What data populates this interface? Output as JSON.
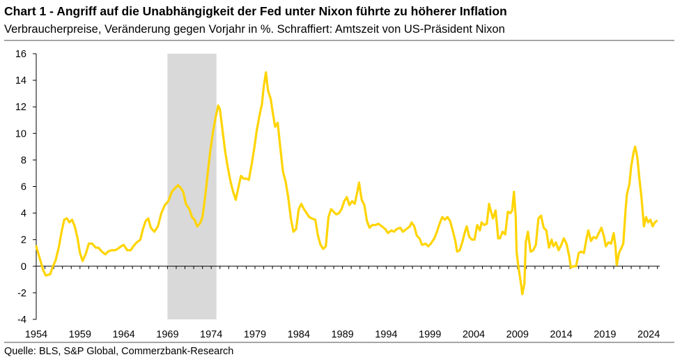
{
  "header": {
    "title": "Chart 1 - Angriff auf die Unabhängigkeit der Fed unter Nixon führte zu höherer Inflation",
    "subtitle": "Verbraucherpreise, Veränderung gegen Vorjahr in %. Schraffiert: Amtszeit von US-Präsident Nixon"
  },
  "footer": {
    "source": "Quelle: BLS, S&P Global, Commerzbank-Research"
  },
  "chart_data": {
    "type": "line",
    "xlim": [
      1954,
      2025.5
    ],
    "ylim": [
      -4,
      16
    ],
    "y_ticks": [
      "16",
      "14",
      "12",
      "10",
      "8",
      "6",
      "4",
      "2",
      "0",
      "-2",
      "-4"
    ],
    "x_ticks": [
      "1954",
      "1959",
      "1964",
      "1969",
      "1974",
      "1979",
      "1984",
      "1989",
      "1994",
      "1999",
      "2004",
      "2009",
      "2014",
      "2019",
      "2024"
    ],
    "shaded_period": {
      "start": 1969.0,
      "end": 1974.6,
      "color": "#d9d9d9"
    },
    "series": [
      {
        "color": "#ffd400",
        "points": [
          [
            1954.0,
            1.5
          ],
          [
            1954.4,
            0.6
          ],
          [
            1954.8,
            -0.3
          ],
          [
            1955.1,
            -0.7
          ],
          [
            1955.6,
            -0.6
          ],
          [
            1955.9,
            0.0
          ],
          [
            1956.2,
            0.4
          ],
          [
            1956.6,
            1.5
          ],
          [
            1956.9,
            2.6
          ],
          [
            1957.2,
            3.5
          ],
          [
            1957.5,
            3.6
          ],
          [
            1957.8,
            3.3
          ],
          [
            1958.1,
            3.5
          ],
          [
            1958.4,
            3.0
          ],
          [
            1958.7,
            2.2
          ],
          [
            1959.0,
            1.0
          ],
          [
            1959.3,
            0.4
          ],
          [
            1959.7,
            1.0
          ],
          [
            1960.0,
            1.7
          ],
          [
            1960.4,
            1.7
          ],
          [
            1960.8,
            1.4
          ],
          [
            1961.1,
            1.4
          ],
          [
            1961.5,
            1.1
          ],
          [
            1961.9,
            0.9
          ],
          [
            1962.2,
            1.1
          ],
          [
            1962.6,
            1.2
          ],
          [
            1963.0,
            1.2
          ],
          [
            1963.3,
            1.3
          ],
          [
            1963.7,
            1.5
          ],
          [
            1964.0,
            1.6
          ],
          [
            1964.4,
            1.2
          ],
          [
            1964.8,
            1.2
          ],
          [
            1965.1,
            1.5
          ],
          [
            1965.5,
            1.8
          ],
          [
            1965.9,
            2.0
          ],
          [
            1966.2,
            2.8
          ],
          [
            1966.5,
            3.4
          ],
          [
            1966.8,
            3.6
          ],
          [
            1967.1,
            2.9
          ],
          [
            1967.5,
            2.6
          ],
          [
            1967.9,
            3.0
          ],
          [
            1968.3,
            4.0
          ],
          [
            1968.7,
            4.6
          ],
          [
            1969.1,
            4.9
          ],
          [
            1969.5,
            5.6
          ],
          [
            1969.9,
            5.9
          ],
          [
            1970.2,
            6.1
          ],
          [
            1970.5,
            5.9
          ],
          [
            1970.8,
            5.6
          ],
          [
            1971.1,
            4.7
          ],
          [
            1971.5,
            4.3
          ],
          [
            1971.8,
            3.7
          ],
          [
            1972.1,
            3.5
          ],
          [
            1972.4,
            3.0
          ],
          [
            1972.7,
            3.2
          ],
          [
            1973.0,
            3.7
          ],
          [
            1973.3,
            5.2
          ],
          [
            1973.6,
            7.0
          ],
          [
            1973.9,
            8.7
          ],
          [
            1974.2,
            10.1
          ],
          [
            1974.5,
            11.2
          ],
          [
            1974.8,
            12.1
          ],
          [
            1975.0,
            11.8
          ],
          [
            1975.3,
            10.2
          ],
          [
            1975.6,
            8.6
          ],
          [
            1975.9,
            7.4
          ],
          [
            1976.2,
            6.4
          ],
          [
            1976.5,
            5.6
          ],
          [
            1976.8,
            5.0
          ],
          [
            1977.1,
            5.9
          ],
          [
            1977.4,
            6.8
          ],
          [
            1977.7,
            6.6
          ],
          [
            1978.0,
            6.6
          ],
          [
            1978.3,
            6.5
          ],
          [
            1978.6,
            7.6
          ],
          [
            1978.9,
            8.8
          ],
          [
            1979.2,
            10.2
          ],
          [
            1979.5,
            11.3
          ],
          [
            1979.8,
            12.2
          ],
          [
            1980.0,
            13.5
          ],
          [
            1980.25,
            14.6
          ],
          [
            1980.5,
            13.2
          ],
          [
            1980.8,
            12.6
          ],
          [
            1981.0,
            11.7
          ],
          [
            1981.3,
            10.5
          ],
          [
            1981.6,
            10.8
          ],
          [
            1981.9,
            8.9
          ],
          [
            1982.2,
            7.1
          ],
          [
            1982.5,
            6.4
          ],
          [
            1982.8,
            5.2
          ],
          [
            1983.1,
            3.6
          ],
          [
            1983.4,
            2.6
          ],
          [
            1983.7,
            2.8
          ],
          [
            1984.0,
            4.3
          ],
          [
            1984.3,
            4.7
          ],
          [
            1984.6,
            4.3
          ],
          [
            1984.9,
            4.0
          ],
          [
            1985.2,
            3.7
          ],
          [
            1985.5,
            3.6
          ],
          [
            1985.9,
            3.5
          ],
          [
            1986.2,
            2.3
          ],
          [
            1986.5,
            1.6
          ],
          [
            1986.8,
            1.3
          ],
          [
            1987.1,
            1.5
          ],
          [
            1987.4,
            3.7
          ],
          [
            1987.7,
            4.3
          ],
          [
            1988.0,
            4.1
          ],
          [
            1988.3,
            3.9
          ],
          [
            1988.6,
            4.0
          ],
          [
            1988.9,
            4.3
          ],
          [
            1989.2,
            4.9
          ],
          [
            1989.5,
            5.2
          ],
          [
            1989.8,
            4.6
          ],
          [
            1990.1,
            4.9
          ],
          [
            1990.4,
            4.7
          ],
          [
            1990.7,
            5.6
          ],
          [
            1990.9,
            6.3
          ],
          [
            1991.2,
            5.0
          ],
          [
            1991.5,
            4.6
          ],
          [
            1991.8,
            3.4
          ],
          [
            1992.1,
            2.9
          ],
          [
            1992.4,
            3.1
          ],
          [
            1992.8,
            3.1
          ],
          [
            1993.1,
            3.2
          ],
          [
            1993.5,
            3.0
          ],
          [
            1993.9,
            2.8
          ],
          [
            1994.2,
            2.5
          ],
          [
            1994.6,
            2.7
          ],
          [
            1994.9,
            2.6
          ],
          [
            1995.2,
            2.8
          ],
          [
            1995.6,
            2.9
          ],
          [
            1995.9,
            2.6
          ],
          [
            1996.3,
            2.8
          ],
          [
            1996.7,
            3.0
          ],
          [
            1996.9,
            3.3
          ],
          [
            1997.2,
            3.0
          ],
          [
            1997.5,
            2.3
          ],
          [
            1997.8,
            2.1
          ],
          [
            1998.1,
            1.6
          ],
          [
            1998.5,
            1.7
          ],
          [
            1998.8,
            1.5
          ],
          [
            1999.1,
            1.7
          ],
          [
            1999.5,
            2.1
          ],
          [
            1999.8,
            2.6
          ],
          [
            2000.1,
            3.2
          ],
          [
            2000.4,
            3.7
          ],
          [
            2000.7,
            3.5
          ],
          [
            2001.0,
            3.7
          ],
          [
            2001.3,
            3.4
          ],
          [
            2001.6,
            2.7
          ],
          [
            2001.9,
            1.9
          ],
          [
            2002.1,
            1.1
          ],
          [
            2002.4,
            1.2
          ],
          [
            2002.7,
            1.8
          ],
          [
            2003.0,
            2.6
          ],
          [
            2003.2,
            3.0
          ],
          [
            2003.5,
            2.2
          ],
          [
            2003.8,
            2.0
          ],
          [
            2004.1,
            2.0
          ],
          [
            2004.4,
            3.1
          ],
          [
            2004.7,
            2.7
          ],
          [
            2004.9,
            3.3
          ],
          [
            2005.2,
            3.1
          ],
          [
            2005.5,
            3.2
          ],
          [
            2005.75,
            4.7
          ],
          [
            2005.9,
            4.3
          ],
          [
            2006.2,
            3.6
          ],
          [
            2006.5,
            4.2
          ],
          [
            2006.8,
            2.1
          ],
          [
            2007.0,
            2.1
          ],
          [
            2007.3,
            2.6
          ],
          [
            2007.6,
            2.4
          ],
          [
            2007.9,
            4.1
          ],
          [
            2008.2,
            4.0
          ],
          [
            2008.4,
            4.2
          ],
          [
            2008.6,
            5.6
          ],
          [
            2008.8,
            3.7
          ],
          [
            2008.9,
            1.1
          ],
          [
            2009.1,
            0.0
          ],
          [
            2009.4,
            -1.3
          ],
          [
            2009.55,
            -2.1
          ],
          [
            2009.8,
            -1.3
          ],
          [
            2009.95,
            1.8
          ],
          [
            2010.2,
            2.6
          ],
          [
            2010.5,
            1.1
          ],
          [
            2010.8,
            1.2
          ],
          [
            2011.1,
            1.6
          ],
          [
            2011.4,
            3.6
          ],
          [
            2011.7,
            3.8
          ],
          [
            2012.0,
            2.9
          ],
          [
            2012.3,
            2.7
          ],
          [
            2012.6,
            1.4
          ],
          [
            2012.9,
            2.0
          ],
          [
            2013.1,
            1.5
          ],
          [
            2013.4,
            1.8
          ],
          [
            2013.7,
            1.2
          ],
          [
            2014.0,
            1.6
          ],
          [
            2014.3,
            2.1
          ],
          [
            2014.6,
            1.7
          ],
          [
            2014.9,
            0.8
          ],
          [
            2015.1,
            -0.1
          ],
          [
            2015.4,
            0.0
          ],
          [
            2015.7,
            0.0
          ],
          [
            2016.0,
            1.0
          ],
          [
            2016.3,
            1.1
          ],
          [
            2016.6,
            1.0
          ],
          [
            2016.9,
            2.1
          ],
          [
            2017.1,
            2.7
          ],
          [
            2017.4,
            1.9
          ],
          [
            2017.7,
            2.2
          ],
          [
            2018.0,
            2.1
          ],
          [
            2018.3,
            2.5
          ],
          [
            2018.6,
            2.9
          ],
          [
            2018.9,
            2.2
          ],
          [
            2019.1,
            1.5
          ],
          [
            2019.4,
            1.8
          ],
          [
            2019.7,
            1.7
          ],
          [
            2020.0,
            2.5
          ],
          [
            2020.2,
            1.5
          ],
          [
            2020.35,
            0.1
          ],
          [
            2020.6,
            1.0
          ],
          [
            2020.9,
            1.4
          ],
          [
            2021.1,
            1.7
          ],
          [
            2021.35,
            4.2
          ],
          [
            2021.5,
            5.4
          ],
          [
            2021.8,
            6.2
          ],
          [
            2022.0,
            7.5
          ],
          [
            2022.25,
            8.5
          ],
          [
            2022.45,
            9.0
          ],
          [
            2022.7,
            8.2
          ],
          [
            2022.95,
            6.5
          ],
          [
            2023.2,
            5.0
          ],
          [
            2023.45,
            3.0
          ],
          [
            2023.7,
            3.7
          ],
          [
            2023.95,
            3.3
          ],
          [
            2024.2,
            3.5
          ],
          [
            2024.45,
            3.0
          ],
          [
            2024.7,
            3.3
          ],
          [
            2024.9,
            3.4
          ]
        ]
      }
    ]
  }
}
